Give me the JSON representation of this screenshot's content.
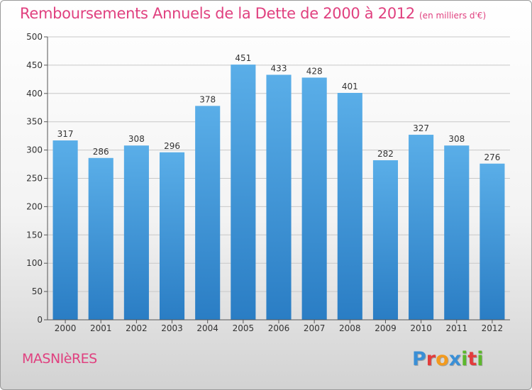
{
  "header": {
    "title": "Remboursements Annuels de la Dette de 2000 à 2012",
    "subtitle": "(en milliers d'€)"
  },
  "footer": {
    "commune": "MASNIèRES",
    "logo": [
      "P",
      "r",
      "o",
      "x",
      "i",
      "t",
      "i"
    ],
    "logo_colors": [
      "#3a8fd6",
      "#e23c3c",
      "#f39a1d",
      "#3a8fd6",
      "#5cb82c",
      "#e23c3c",
      "#5cb82c"
    ]
  },
  "colors": {
    "bar_top": "#5aaee8",
    "bar_bottom": "#2a7dc4",
    "accent": "#e0407f"
  },
  "chart_data": {
    "type": "bar",
    "title": "Remboursements Annuels de la Dette de 2000 à 2012",
    "subtitle": "(en milliers d'€)",
    "categories": [
      "2000",
      "2001",
      "2002",
      "2003",
      "2004",
      "2005",
      "2006",
      "2007",
      "2008",
      "2009",
      "2010",
      "2011",
      "2012"
    ],
    "values": [
      317,
      286,
      308,
      296,
      378,
      451,
      433,
      428,
      401,
      282,
      327,
      308,
      276
    ],
    "ylim": [
      0,
      500
    ],
    "yticks": [
      0,
      50,
      100,
      150,
      200,
      250,
      300,
      350,
      400,
      450,
      500
    ],
    "grid": true
  }
}
